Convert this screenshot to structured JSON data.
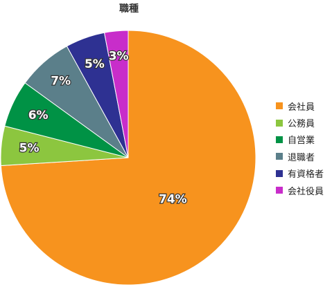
{
  "chart_data": {
    "type": "pie",
    "title": "職種",
    "categories": [
      "会社員",
      "公務員",
      "自営業",
      "退職者",
      "有資格者",
      "会社役員"
    ],
    "values": [
      74,
      5,
      6,
      7,
      5,
      3
    ],
    "value_labels": [
      "74%",
      "5%",
      "6%",
      "7%",
      "5%",
      "3%"
    ],
    "colors": [
      "#F7931E",
      "#8CC63F",
      "#009245",
      "#5B7F8A",
      "#2E3192",
      "#C82DCA"
    ],
    "start": "12 o'clock, clockwise",
    "legend_position": "right"
  }
}
